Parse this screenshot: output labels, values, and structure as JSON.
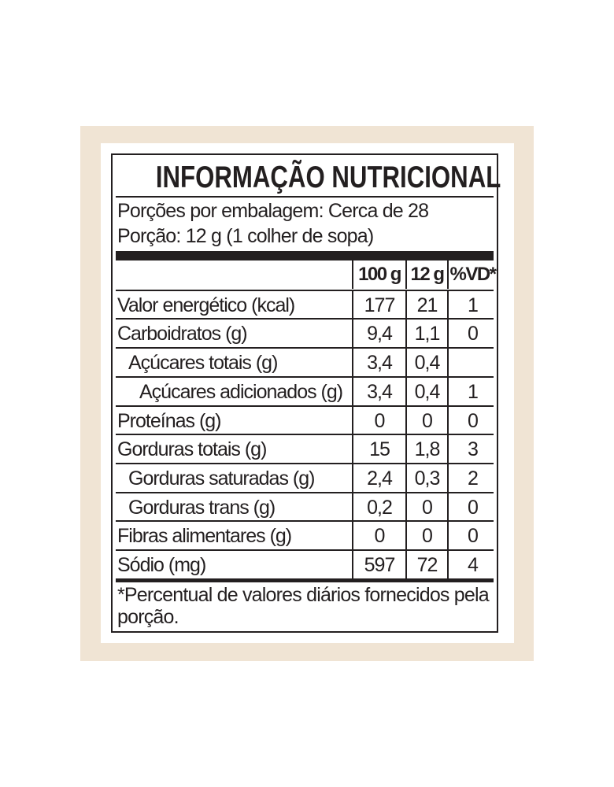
{
  "title": "INFORMAÇÃO NUTRICIONAL",
  "servings_per_package": "Porções por embalagem: Cerca de 28",
  "serving_size": "Porção: 12 g (1 colher de sopa)",
  "columns": [
    "",
    "100 g",
    "12 g",
    "%VD*"
  ],
  "rows": [
    {
      "label": "Valor energético (kcal)",
      "per100": "177",
      "perServing": "21",
      "vd": "1",
      "indent": 0
    },
    {
      "label": "Carboidratos (g)",
      "per100": "9,4",
      "perServing": "1,1",
      "vd": "0",
      "indent": 0
    },
    {
      "label": "Açúcares totais (g)",
      "per100": "3,4",
      "perServing": "0,4",
      "vd": "",
      "indent": 1
    },
    {
      "label": "Açúcares adicionados (g)",
      "per100": "3,4",
      "perServing": "0,4",
      "vd": "1",
      "indent": 2
    },
    {
      "label": "Proteínas (g)",
      "per100": "0",
      "perServing": "0",
      "vd": "0",
      "indent": 0
    },
    {
      "label": "Gorduras totais (g)",
      "per100": "15",
      "perServing": "1,8",
      "vd": "3",
      "indent": 0
    },
    {
      "label": "Gorduras saturadas (g)",
      "per100": "2,4",
      "perServing": "0,3",
      "vd": "2",
      "indent": 1
    },
    {
      "label": "Gorduras trans (g)",
      "per100": "0,2",
      "perServing": "0",
      "vd": "0",
      "indent": 1
    },
    {
      "label": "Fibras alimentares (g)",
      "per100": "0",
      "perServing": "0",
      "vd": "0",
      "indent": 0
    },
    {
      "label": "Sódio (mg)",
      "per100": "597",
      "perServing": "72",
      "vd": "4",
      "indent": 0
    }
  ],
  "footnote": "*Percentual de valores diários fornecidos pela porção.",
  "colors": {
    "background": "#f0e4d4",
    "ink": "#231f20"
  }
}
